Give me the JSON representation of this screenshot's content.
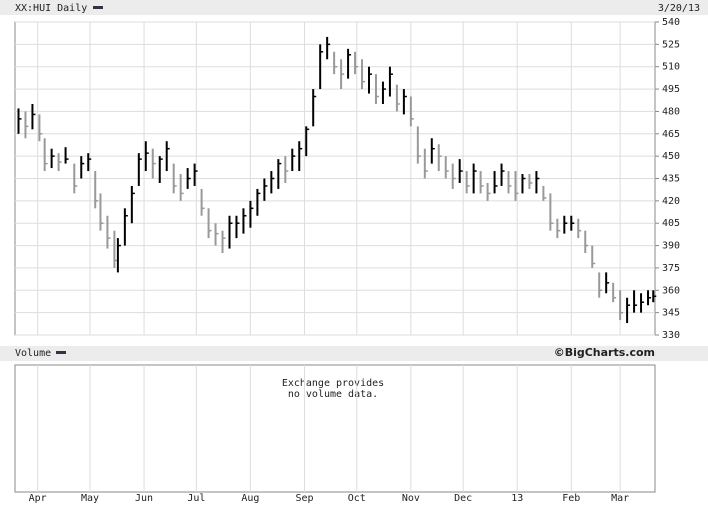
{
  "chart_data": {
    "type": "ohlc",
    "title": "XX:HUI Daily",
    "date": "3/20/13",
    "volume_title": "Volume",
    "credit": "©BigCharts.com",
    "volume_note": [
      "Exchange provides",
      "no volume data."
    ],
    "up_color": "#000000",
    "down_color": "#999999",
    "grid": true,
    "xlim": [
      -1,
      366
    ],
    "xticks": [
      {
        "value": 12,
        "label": "Apr"
      },
      {
        "value": 42,
        "label": "May"
      },
      {
        "value": 73,
        "label": "Jun"
      },
      {
        "value": 103,
        "label": "Jul"
      },
      {
        "value": 134,
        "label": "Aug"
      },
      {
        "value": 165,
        "label": "Sep"
      },
      {
        "value": 195,
        "label": "Oct"
      },
      {
        "value": 226,
        "label": "Nov"
      },
      {
        "value": 256,
        "label": "Dec"
      },
      {
        "value": 287,
        "label": "13"
      },
      {
        "value": 318,
        "label": "Feb"
      },
      {
        "value": 346,
        "label": "Mar"
      }
    ],
    "ylim": [
      330,
      540
    ],
    "yticks": [
      330,
      345,
      360,
      375,
      390,
      405,
      420,
      435,
      450,
      465,
      480,
      495,
      510,
      525,
      540
    ],
    "x": [
      1,
      5,
      9,
      13,
      16,
      20,
      24,
      28,
      33,
      37,
      41,
      45,
      48,
      52,
      56,
      58,
      62,
      66,
      70,
      74,
      78,
      82,
      86,
      90,
      94,
      98,
      102,
      106,
      110,
      114,
      118,
      122,
      126,
      130,
      134,
      138,
      142,
      146,
      150,
      154,
      158,
      162,
      166,
      170,
      174,
      178,
      182,
      186,
      190,
      194,
      198,
      202,
      206,
      210,
      214,
      218,
      222,
      226,
      230,
      234,
      238,
      242,
      246,
      250,
      254,
      258,
      262,
      266,
      270,
      274,
      278,
      282,
      286,
      290,
      294,
      298,
      302,
      306,
      310,
      314,
      318,
      322,
      326,
      330,
      334,
      338,
      342,
      346,
      350,
      354,
      358,
      362,
      365
    ],
    "high": [
      482,
      480,
      485,
      478,
      462,
      455,
      452,
      456,
      445,
      450,
      452,
      440,
      425,
      410,
      400,
      395,
      415,
      430,
      452,
      460,
      455,
      450,
      460,
      445,
      438,
      442,
      445,
      428,
      415,
      405,
      400,
      410,
      410,
      415,
      420,
      428,
      435,
      440,
      448,
      450,
      455,
      460,
      470,
      495,
      525,
      530,
      520,
      515,
      522,
      520,
      515,
      510,
      505,
      500,
      510,
      498,
      495,
      490,
      470,
      455,
      462,
      458,
      450,
      445,
      448,
      440,
      445,
      440,
      432,
      440,
      445,
      440,
      440,
      438,
      438,
      440,
      430,
      425,
      408,
      410,
      410,
      408,
      400,
      390,
      372,
      372,
      365,
      360,
      355,
      360,
      358,
      360,
      360
    ],
    "low": [
      465,
      462,
      468,
      460,
      440,
      442,
      440,
      445,
      425,
      435,
      440,
      415,
      400,
      388,
      375,
      372,
      390,
      405,
      430,
      440,
      435,
      432,
      440,
      425,
      420,
      428,
      430,
      410,
      395,
      390,
      385,
      388,
      395,
      398,
      402,
      410,
      420,
      425,
      428,
      432,
      440,
      440,
      450,
      470,
      495,
      515,
      505,
      495,
      502,
      505,
      495,
      492,
      485,
      485,
      490,
      480,
      478,
      470,
      445,
      435,
      445,
      440,
      435,
      428,
      432,
      425,
      425,
      425,
      420,
      425,
      430,
      425,
      420,
      425,
      428,
      425,
      420,
      400,
      395,
      398,
      400,
      395,
      385,
      375,
      355,
      358,
      352,
      340,
      338,
      345,
      345,
      350,
      352
    ],
    "close": [
      475,
      470,
      478,
      465,
      445,
      450,
      446,
      448,
      430,
      445,
      448,
      420,
      405,
      395,
      380,
      390,
      410,
      425,
      448,
      452,
      445,
      448,
      455,
      430,
      425,
      435,
      440,
      415,
      400,
      398,
      395,
      405,
      405,
      410,
      415,
      425,
      430,
      435,
      445,
      440,
      450,
      455,
      468,
      490,
      520,
      525,
      510,
      505,
      518,
      510,
      500,
      505,
      490,
      495,
      505,
      485,
      490,
      475,
      450,
      440,
      455,
      450,
      440,
      435,
      440,
      430,
      440,
      430,
      425,
      430,
      440,
      430,
      425,
      435,
      432,
      435,
      422,
      405,
      400,
      405,
      405,
      400,
      390,
      378,
      360,
      365,
      355,
      345,
      350,
      350,
      352,
      355,
      356
    ]
  }
}
